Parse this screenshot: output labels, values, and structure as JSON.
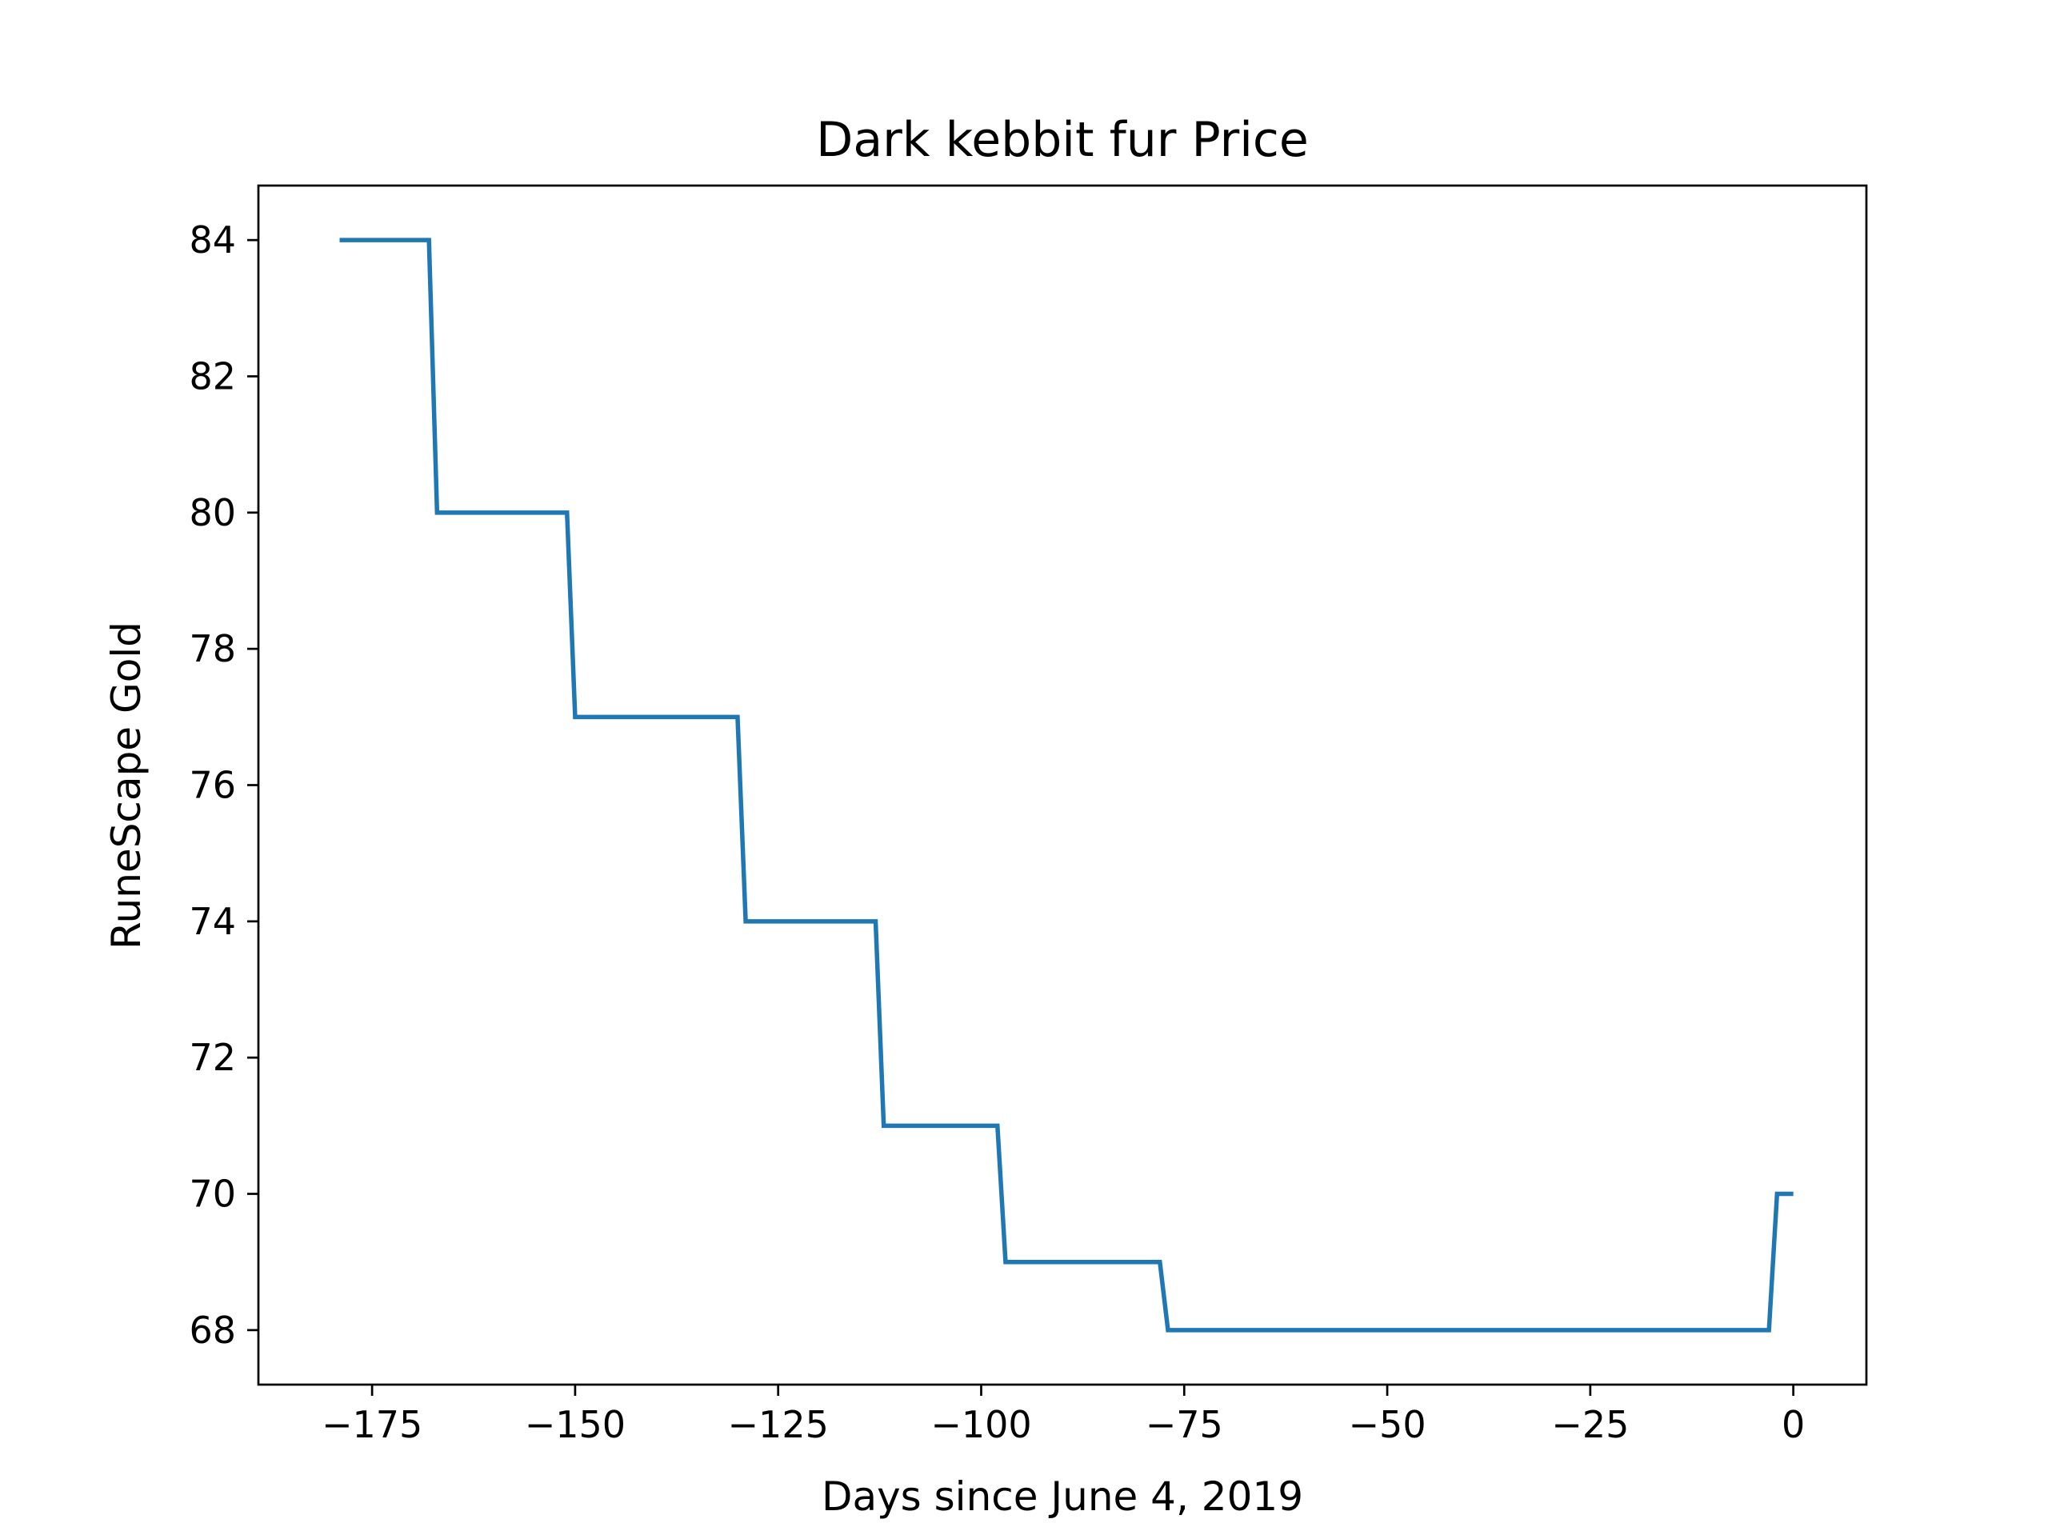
{
  "chart_data": {
    "type": "line",
    "title": "Dark kebbit fur Price",
    "xlabel": "Days since June 4, 2019",
    "ylabel": "RuneScape Gold",
    "xlim": [
      -189,
      9
    ],
    "ylim": [
      67.2,
      84.8
    ],
    "xticks": [
      -175,
      -150,
      -125,
      -100,
      -75,
      -50,
      -25,
      0
    ],
    "xtick_labels": [
      "−175",
      "−150",
      "−125",
      "−100",
      "−75",
      "−50",
      "−25",
      "0"
    ],
    "yticks": [
      68,
      70,
      72,
      74,
      76,
      78,
      80,
      82,
      84
    ],
    "ytick_labels": [
      "68",
      "70",
      "72",
      "74",
      "76",
      "78",
      "80",
      "82",
      "84"
    ],
    "grid": false,
    "series": [
      {
        "color": "#1f77b4",
        "x": [
          -179,
          -168,
          -167,
          -151,
          -150,
          -130,
          -129,
          -113,
          -112,
          -98,
          -97,
          -78,
          -77,
          -3,
          -2,
          0
        ],
        "y": [
          84,
          84,
          80,
          80,
          77,
          77,
          74,
          74,
          71,
          71,
          69,
          69,
          68,
          68,
          70,
          70
        ]
      }
    ]
  }
}
